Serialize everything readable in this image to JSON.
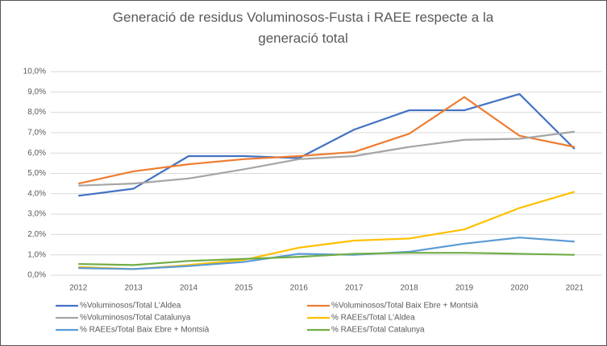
{
  "chart_data": {
    "type": "line",
    "title": "Generació de residus Voluminosos-Fusta i RAEE respecte a la generació total",
    "categories": [
      "2012",
      "2013",
      "2014",
      "2015",
      "2016",
      "2017",
      "2018",
      "2019",
      "2020",
      "2021"
    ],
    "series": [
      {
        "name": "%Voluminosos/Total L'Aldea",
        "color": "#4472c4",
        "values": [
          3.9,
          4.25,
          5.85,
          5.85,
          5.75,
          7.15,
          8.1,
          8.1,
          8.9,
          6.2
        ]
      },
      {
        "name": "%Voluminosos/Total Baix Ebre + Montsià",
        "color": "#ed7d31",
        "values": [
          4.5,
          5.1,
          5.45,
          5.7,
          5.85,
          6.05,
          6.95,
          8.75,
          6.85,
          6.3
        ]
      },
      {
        "name": "%Voluminosos/Total Catalunya",
        "color": "#a5a5a5",
        "values": [
          4.4,
          4.5,
          4.75,
          5.2,
          5.7,
          5.85,
          6.3,
          6.65,
          6.7,
          7.05
        ]
      },
      {
        "name": "% RAEEs/Total L'Aldea",
        "color": "#ffc000",
        "values": [
          0.4,
          0.3,
          0.5,
          0.75,
          1.35,
          1.7,
          1.8,
          2.25,
          3.3,
          4.1
        ]
      },
      {
        "name": "% RAEEs/Total Baix Ebre + Montsià",
        "color": "#5b9bd5",
        "values": [
          0.35,
          0.3,
          0.45,
          0.65,
          1.05,
          1.0,
          1.15,
          1.55,
          1.85,
          1.65
        ]
      },
      {
        "name": "% RAEEs/Total Catalunya",
        "color": "#70ad47",
        "values": [
          0.55,
          0.5,
          0.7,
          0.8,
          0.9,
          1.05,
          1.1,
          1.1,
          1.05,
          1.0
        ]
      }
    ],
    "ylim": [
      0,
      10
    ],
    "yticks": [
      {
        "value": 0,
        "label": "0,0%"
      },
      {
        "value": 1,
        "label": "1,0%"
      },
      {
        "value": 2,
        "label": "2,0%"
      },
      {
        "value": 3,
        "label": "3,0%"
      },
      {
        "value": 4,
        "label": "4,0%"
      },
      {
        "value": 5,
        "label": "5,0%"
      },
      {
        "value": 6,
        "label": "6,0%"
      },
      {
        "value": 7,
        "label": "7,0%"
      },
      {
        "value": 8,
        "label": "8,0%"
      },
      {
        "value": 9,
        "label": "9,0%"
      },
      {
        "value": 10,
        "label": "10,0%"
      }
    ],
    "grid": true,
    "legend": "bottom"
  }
}
